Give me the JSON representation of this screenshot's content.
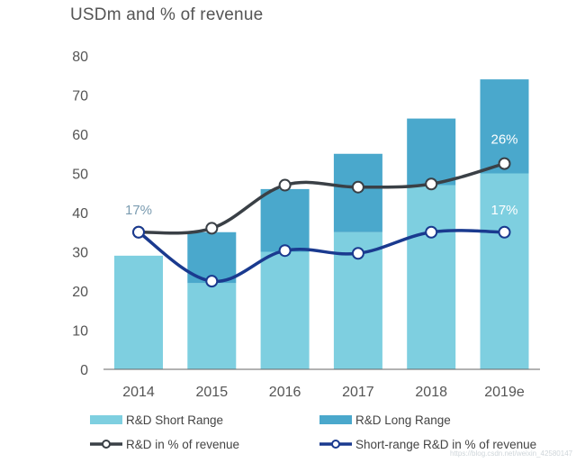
{
  "title": "USDm and % of revenue",
  "colors": {
    "short_range": "#7ecfe0",
    "long_range": "#4aa8cc",
    "rd_pct_line": "#3a4046",
    "short_pct_line": "#1a3a8f",
    "axis": "#555555"
  },
  "chart_data": {
    "type": "bar",
    "title": "USDm and % of revenue",
    "categories": [
      "2014",
      "2015",
      "2016",
      "2017",
      "2018",
      "2019e"
    ],
    "ylim": [
      0,
      80
    ],
    "yticks": [
      0,
      10,
      20,
      30,
      40,
      50,
      60,
      70,
      80
    ],
    "stacked": true,
    "series": [
      {
        "name": "R&D Short Range",
        "kind": "bar",
        "values": [
          29,
          22,
          30,
          35,
          47,
          50
        ]
      },
      {
        "name": "R&D Long Range",
        "kind": "bar",
        "values": [
          0,
          13,
          16,
          20,
          17,
          24
        ]
      },
      {
        "name": "R&D in % of revenue",
        "kind": "line",
        "values": [
          35,
          36,
          47,
          46.5,
          47.3,
          52.5
        ]
      },
      {
        "name": "Short-range R&D in % of revenue",
        "kind": "line",
        "values": [
          35,
          22.5,
          30.3,
          29.6,
          35,
          35
        ]
      }
    ],
    "annotations": [
      {
        "text": "17%",
        "category": "2014",
        "y": 40
      },
      {
        "text": "26%",
        "category": "2019e",
        "y": 58
      },
      {
        "text": "17%",
        "category": "2019e",
        "y": 40
      }
    ],
    "legend": {
      "placement": "bottom",
      "items": [
        "R&D Short Range",
        "R&D Long Range",
        "R&D in % of revenue",
        "Short-range R&D in % of revenue"
      ]
    },
    "grid": false
  },
  "watermark": "https://blog.csdn.net/weixin_42580147"
}
